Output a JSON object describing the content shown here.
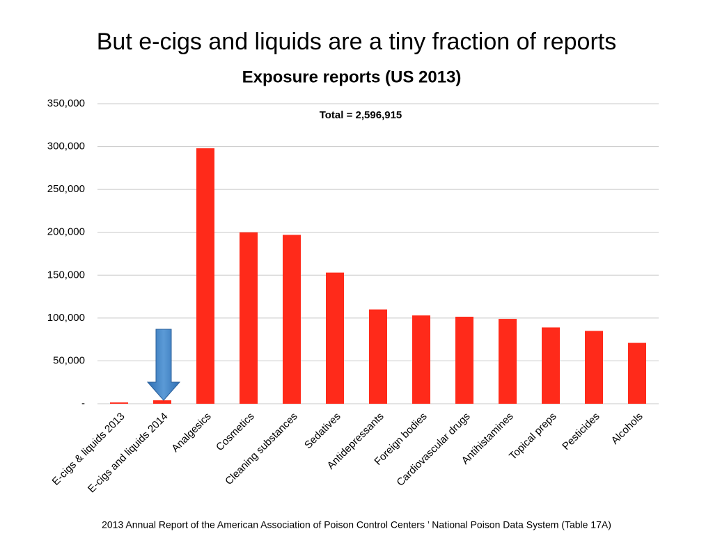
{
  "chart_data": {
    "type": "bar",
    "title": "But e-cigs and liquids are a tiny fraction of reports",
    "subtitle": "Exposure reports (US 2013)",
    "annotation": "Total =  2,596,915",
    "note": "2013 Annual Report of the American Association of Poison Control Centers ’ National Poison Data System (Table 17A)",
    "categories": [
      "E-cigs & liquids 2013",
      "E-cigs and liquids 2014",
      "Analgesics",
      "Cosmetics",
      "Cleaning substances",
      "Sedatives",
      "Antidepressants",
      "Foreign bodies",
      "Cardiovascular drugs",
      "Antihistamines",
      "Topical preps",
      "Pesticides",
      "Alcohols"
    ],
    "values": [
      1500,
      4000,
      298000,
      200000,
      197000,
      153000,
      110000,
      103000,
      101500,
      99000,
      89000,
      85000,
      71000
    ],
    "color": "#ff2a1a",
    "ylim": [
      0,
      350000
    ],
    "yticks": [
      {
        "value": 0,
        "label": "-"
      },
      {
        "value": 50000,
        "label": "50,000"
      },
      {
        "value": 100000,
        "label": "100,000"
      },
      {
        "value": 150000,
        "label": "150,000"
      },
      {
        "value": 200000,
        "label": "200,000"
      },
      {
        "value": 250000,
        "label": "250,000"
      },
      {
        "value": 300000,
        "label": "300,000"
      },
      {
        "value": 350000,
        "label": "350,000"
      }
    ],
    "grid": true
  }
}
